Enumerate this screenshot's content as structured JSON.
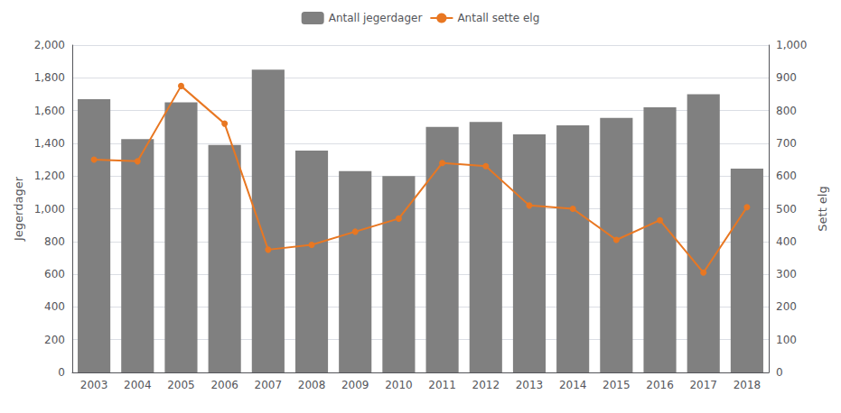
{
  "chart_data": {
    "type": "bar",
    "categories": [
      "2003",
      "2004",
      "2005",
      "2006",
      "2007",
      "2008",
      "2009",
      "2010",
      "2011",
      "2012",
      "2013",
      "2014",
      "2015",
      "2016",
      "2017",
      "2018"
    ],
    "series": [
      {
        "name": "Antall jegerdager",
        "type": "bar",
        "color": "#808080",
        "values": [
          1670,
          1425,
          1650,
          1390,
          1850,
          1355,
          1230,
          1200,
          1500,
          1530,
          1455,
          1510,
          1555,
          1620,
          1700,
          1245
        ]
      },
      {
        "name": "Antall sette elg",
        "type": "line",
        "color": "#E87722",
        "marker": "circle",
        "axis": "y2",
        "values": [
          650,
          645,
          875,
          760,
          375,
          390,
          430,
          470,
          640,
          630,
          510,
          500,
          405,
          465,
          305,
          505
        ]
      }
    ],
    "ylabel": "Jegerdager",
    "y2label": "Sett elg",
    "ylim": [
      0,
      2000
    ],
    "yticks": [
      0,
      200,
      400,
      600,
      800,
      1000,
      1200,
      1400,
      1600,
      1800,
      2000
    ],
    "y2lim": [
      0,
      1000
    ],
    "y2ticks": [
      0,
      100,
      200,
      300,
      400,
      500,
      600,
      700,
      800,
      900,
      1000
    ],
    "grid": true,
    "legend": "top"
  }
}
